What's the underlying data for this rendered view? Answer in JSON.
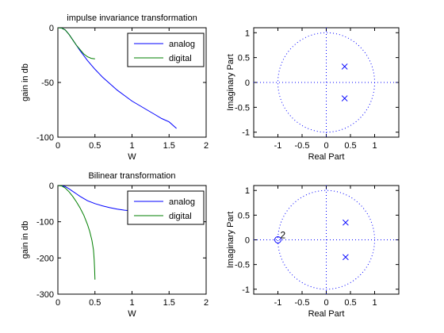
{
  "chart_data": [
    {
      "type": "line",
      "title": "impulse invariance transformation",
      "xlabel": "W",
      "ylabel": "gain in db",
      "xlim": [
        0,
        2
      ],
      "ylim": [
        -100,
        0
      ],
      "xticks": [
        0,
        0.5,
        1,
        1.5,
        2
      ],
      "xtick_labels": [
        "0",
        "0.5",
        "1",
        "1.5",
        "2"
      ],
      "yticks": [
        -100,
        -50,
        0
      ],
      "ytick_labels": [
        "-100",
        "-50",
        "0"
      ],
      "grid": false,
      "legend": "top-right",
      "series": [
        {
          "name": "analog",
          "color": "#0000ff",
          "x": [
            0,
            0.05,
            0.1,
            0.15,
            0.2,
            0.25,
            0.3,
            0.4,
            0.5,
            0.6,
            0.7,
            0.8,
            0.9,
            1.0,
            1.1,
            1.2,
            1.3,
            1.4,
            1.5,
            1.6
          ],
          "y": [
            0,
            -0.2,
            -2,
            -6,
            -11,
            -16,
            -21,
            -30,
            -38,
            -45,
            -51,
            -57,
            -62,
            -67,
            -71,
            -75,
            -79,
            -83,
            -86,
            -92
          ]
        },
        {
          "name": "digital",
          "color": "#007f00",
          "x": [
            0,
            0.05,
            0.1,
            0.15,
            0.2,
            0.25,
            0.3,
            0.35,
            0.4,
            0.45,
            0.5
          ],
          "y": [
            0,
            -0.3,
            -2,
            -6,
            -11,
            -16,
            -20,
            -24,
            -26.5,
            -28,
            -28.5
          ]
        }
      ]
    },
    {
      "type": "scatter",
      "title": "",
      "xlabel": "Real Part",
      "ylabel": "Imaginary Part",
      "xlim": [
        -1.5,
        1.5
      ],
      "ylim": [
        -1.1,
        1.1
      ],
      "xticks": [
        -1,
        -0.5,
        0,
        0.5,
        1
      ],
      "xtick_labels": [
        "-1",
        "-0.5",
        "0",
        "0.5",
        "1"
      ],
      "yticks": [
        -1,
        -0.5,
        0,
        0.5,
        1
      ],
      "ytick_labels": [
        "-1",
        "-0.5",
        "0",
        "0.5",
        "1"
      ],
      "unit_circle": true,
      "color": "#0000ff",
      "poles": [
        [
          0.38,
          0.32
        ],
        [
          0.38,
          -0.32
        ]
      ],
      "zeros": []
    },
    {
      "type": "line",
      "title": "Bilinear transformation",
      "xlabel": "W",
      "ylabel": "gain in db",
      "xlim": [
        0,
        2
      ],
      "ylim": [
        -300,
        0
      ],
      "xticks": [
        0,
        0.5,
        1,
        1.5,
        2
      ],
      "xtick_labels": [
        "0",
        "0.5",
        "1",
        "1.5",
        "2"
      ],
      "yticks": [
        -300,
        -200,
        -100,
        0
      ],
      "ytick_labels": [
        "-300",
        "-200",
        "-100",
        "0"
      ],
      "grid": false,
      "legend": "top-right",
      "series": [
        {
          "name": "analog",
          "color": "#0000ff",
          "x": [
            0,
            0.05,
            0.1,
            0.15,
            0.2,
            0.25,
            0.3,
            0.35,
            0.4,
            0.5,
            0.6,
            0.7,
            0.8,
            0.9,
            1.0,
            1.1,
            1.2
          ],
          "y": [
            0,
            -0.5,
            -3,
            -9,
            -16,
            -23,
            -30,
            -36,
            -42,
            -50,
            -56,
            -61,
            -65,
            -68,
            -70,
            -72,
            -73
          ]
        },
        {
          "name": "digital",
          "color": "#007f00",
          "x": [
            0,
            0.05,
            0.1,
            0.15,
            0.2,
            0.25,
            0.3,
            0.35,
            0.4,
            0.43,
            0.46,
            0.48,
            0.49,
            0.495,
            0.5
          ],
          "y": [
            0,
            -1,
            -7,
            -17,
            -30,
            -45,
            -62,
            -82,
            -108,
            -127,
            -152,
            -178,
            -205,
            -230,
            -260
          ]
        }
      ]
    },
    {
      "type": "scatter",
      "title": "",
      "xlabel": "Real Part",
      "ylabel": "Imaginary Part",
      "xlim": [
        -1.5,
        1.5
      ],
      "ylim": [
        -1.1,
        1.1
      ],
      "xticks": [
        -1,
        -0.5,
        0,
        0.5,
        1
      ],
      "xtick_labels": [
        "-1",
        "-0.5",
        "0",
        "0.5",
        "1"
      ],
      "yticks": [
        -1,
        -0.5,
        0,
        0.5,
        1
      ],
      "ytick_labels": [
        "-1",
        "-0.5",
        "0",
        "0.5",
        "1"
      ],
      "unit_circle": true,
      "color": "#0000ff",
      "poles": [
        [
          0.4,
          0.35
        ],
        [
          0.4,
          -0.35
        ]
      ],
      "zeros": [
        [
          -1,
          0
        ]
      ],
      "zero_multiplicity_label": "2"
    }
  ]
}
